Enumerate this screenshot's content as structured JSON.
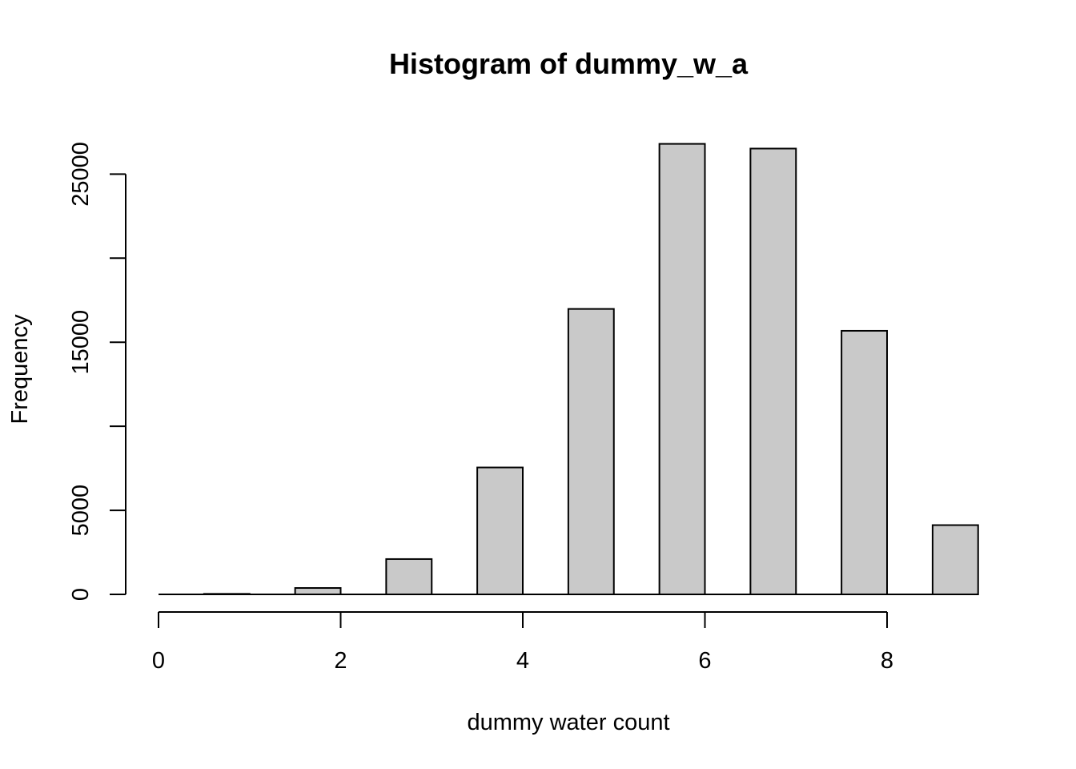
{
  "chart_data": {
    "type": "bar",
    "title": "Histogram of dummy_w_a",
    "xlabel": "dummy water count",
    "ylabel": "Frequency",
    "bins": [
      {
        "x0": 0.5,
        "x1": 1.0,
        "value": 30
      },
      {
        "x0": 1.5,
        "x1": 2.0,
        "value": 380
      },
      {
        "x0": 2.5,
        "x1": 3.0,
        "value": 2100
      },
      {
        "x0": 3.5,
        "x1": 4.0,
        "value": 7550
      },
      {
        "x0": 4.5,
        "x1": 5.0,
        "value": 16980
      },
      {
        "x0": 5.5,
        "x1": 6.0,
        "value": 26800
      },
      {
        "x0": 6.5,
        "x1": 7.0,
        "value": 26520
      },
      {
        "x0": 7.5,
        "x1": 8.0,
        "value": 15680
      },
      {
        "x0": 8.5,
        "x1": 9.0,
        "value": 4120
      }
    ],
    "xlim": [
      0,
      9
    ],
    "ylim": [
      0,
      27500
    ],
    "x_ticks": [
      0,
      2,
      4,
      6,
      8
    ],
    "x_tick_labels": [
      "0",
      "2",
      "4",
      "6",
      "8"
    ],
    "y_ticks": [
      0,
      5000,
      10000,
      15000,
      20000,
      25000
    ],
    "y_tick_labels": [
      "0",
      "5000",
      "",
      "15000",
      "",
      "25000"
    ],
    "bar_color": "#c9c9c9",
    "grid": false
  }
}
